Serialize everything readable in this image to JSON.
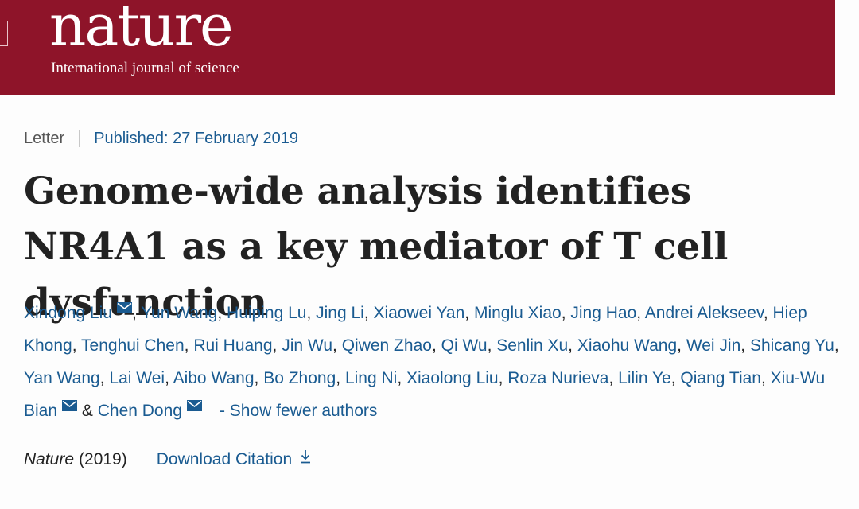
{
  "header": {
    "logo_text": "nature",
    "tagline": "International journal of science",
    "background_color": "#8e1429"
  },
  "article": {
    "type": "Letter",
    "published": "Published: 27 February 2019",
    "title": "Genome-wide analysis identifies NR4A1 as a key mediator of T cell dysfunction",
    "authors": [
      {
        "name": "Xindong Liu",
        "email_icon": true
      },
      {
        "name": "Yun Wang"
      },
      {
        "name": "Huiping Lu"
      },
      {
        "name": "Jing Li"
      },
      {
        "name": "Xiaowei Yan"
      },
      {
        "name": "Minglu Xiao"
      },
      {
        "name": "Jing Hao"
      },
      {
        "name": "Andrei Alekseev"
      },
      {
        "name": "Hiep Khong"
      },
      {
        "name": "Tenghui Chen"
      },
      {
        "name": "Rui Huang"
      },
      {
        "name": "Jin Wu"
      },
      {
        "name": "Qiwen Zhao"
      },
      {
        "name": "Qi Wu"
      },
      {
        "name": "Senlin Xu"
      },
      {
        "name": "Xiaohu Wang"
      },
      {
        "name": "Wei Jin"
      },
      {
        "name": "Shicang Yu"
      },
      {
        "name": "Yan Wang"
      },
      {
        "name": "Lai Wei"
      },
      {
        "name": "Aibo Wang"
      },
      {
        "name": "Bo Zhong"
      },
      {
        "name": "Ling Ni"
      },
      {
        "name": "Xiaolong Liu"
      },
      {
        "name": "Roza Nurieva"
      },
      {
        "name": "Lilin Ye"
      },
      {
        "name": "Qiang Tian"
      },
      {
        "name": "Xiu-Wu Bian",
        "email_icon": true
      },
      {
        "name": "Chen Dong",
        "email_icon": true
      }
    ],
    "author_separator": ", ",
    "author_last_separator": " & ",
    "show_fewer_label": "- Show fewer authors",
    "journal": "Nature",
    "year": "(2019)",
    "download_label": "Download Citation",
    "link_color": "#1a5b91"
  }
}
